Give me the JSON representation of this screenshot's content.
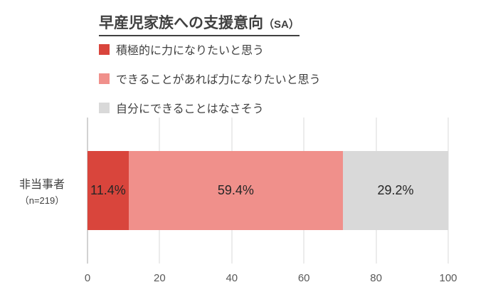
{
  "title": {
    "main": "早産児家族への支援意向",
    "suffix": "（SA）"
  },
  "legend": {
    "items": [
      {
        "label": "積極的に力になりたいと思う",
        "color": "#d9453c"
      },
      {
        "label": "できることがあれば力になりたいと思う",
        "color": "#f0908b"
      },
      {
        "label": "自分にできることはなさそう",
        "color": "#d9d9d9"
      }
    ]
  },
  "category": {
    "line1": "非当事者",
    "line2": "（n=219）"
  },
  "chart_data": {
    "type": "bar",
    "orientation": "horizontal",
    "stacked": true,
    "title": "早産児家族への支援意向（SA）",
    "categories": [
      "非当事者（n=219）"
    ],
    "series": [
      {
        "name": "積極的に力になりたいと思う",
        "values": [
          11.4
        ],
        "label": "11.4%",
        "color": "#d9453c"
      },
      {
        "name": "できることがあれば力になりたいと思う",
        "values": [
          59.4
        ],
        "label": "59.4%",
        "color": "#f0908b"
      },
      {
        "name": "自分にできることはなさそう",
        "values": [
          29.2
        ],
        "label": "29.2%",
        "color": "#d9d9d9"
      }
    ],
    "xlim": [
      0,
      100
    ],
    "xticks": [
      0,
      20,
      40,
      60,
      80,
      100
    ],
    "grid": true,
    "legend_position": "top-left"
  }
}
